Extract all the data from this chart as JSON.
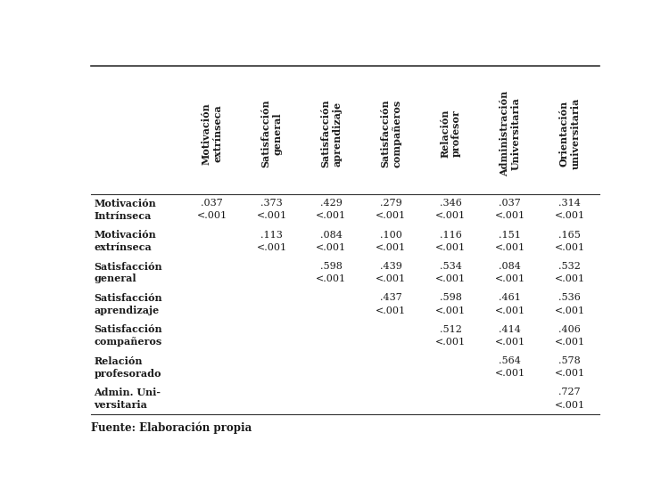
{
  "col_headers": [
    "Motivación\nextrínseca",
    "Satisfacción\ngeneral",
    "Satisfacción\naprendizaje",
    "Satisfacción\ncompañeros",
    "Relación\nprofesor",
    "Administración\nUniversitaria",
    "Orientación\nuniversitaria"
  ],
  "row_headers": [
    "Motivación\nIntrínseca",
    "Motivación\nextrínseca",
    "Satisfacción\ngeneral",
    "Satisfacción\naprendizaje",
    "Satisfacción\ncompañeros",
    "Relación\nprofesorado",
    "Admin. Uni-\nversitaria"
  ],
  "cell_data": [
    [
      ".037\n<.001",
      ".373\n<.001",
      ".429\n<.001",
      ".279\n<.001",
      ".346\n<.001",
      ".037\n<.001",
      ".314\n<.001"
    ],
    [
      "",
      ".113\n<.001",
      ".084\n<.001",
      ".100\n<.001",
      ".116\n<.001",
      ".151\n<.001",
      ".165\n<.001"
    ],
    [
      "",
      "",
      ".598\n<.001",
      ".439\n<.001",
      ".534\n<.001",
      ".084\n<.001",
      ".532\n<.001"
    ],
    [
      "",
      "",
      "",
      ".437\n<.001",
      ".598\n<.001",
      ".461\n<.001",
      ".536\n<.001"
    ],
    [
      "",
      "",
      "",
      "",
      ".512\n<.001",
      ".414\n<.001",
      ".406\n<.001"
    ],
    [
      "",
      "",
      "",
      "",
      "",
      ".564\n<.001",
      ".578\n<.001"
    ],
    [
      "",
      "",
      "",
      "",
      "",
      "",
      ".727\n<.001"
    ]
  ],
  "footer": "Fuente: Elaboración propia",
  "bg_color": "#ffffff",
  "text_color": "#1a1a1a",
  "line_color": "#333333",
  "header_fontsize": 8.0,
  "body_fontsize": 8.0,
  "footer_fontsize": 8.5
}
